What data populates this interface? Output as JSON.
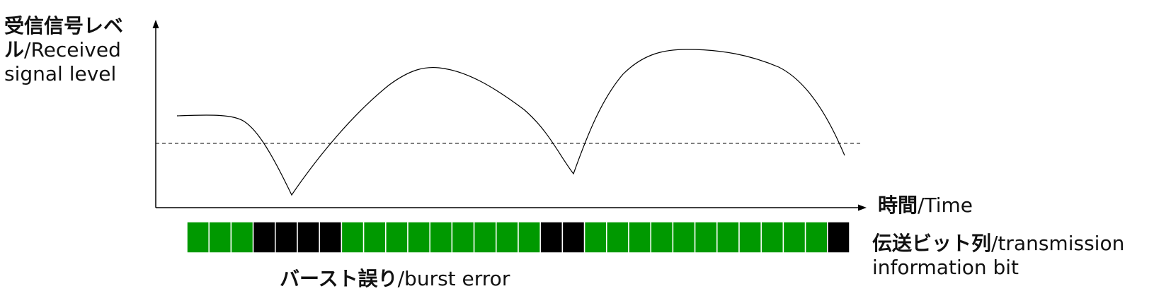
{
  "labels": {
    "y_axis_jp": "受信信号レベ",
    "y_axis_jp2": "ル",
    "y_axis_en1": "/Received",
    "y_axis_en2": "signal level",
    "x_axis_jp": "時間",
    "x_axis_en": "/Time",
    "bits_jp": "伝送ビット列",
    "bits_en1": "/transmission",
    "bits_en2": "information bit",
    "burst_jp": "バースト誤り",
    "burst_en": "/burst error"
  },
  "bits": [
    1,
    1,
    1,
    0,
    0,
    0,
    0,
    1,
    1,
    1,
    1,
    1,
    1,
    1,
    1,
    1,
    0,
    0,
    1,
    1,
    1,
    1,
    1,
    1,
    1,
    1,
    1,
    1,
    1,
    0
  ],
  "colors": {
    "ok_bit": "#009900",
    "error_bit": "#000000",
    "bit_border": "#ffffff",
    "curve": "#000000",
    "threshold": "#000000"
  }
}
